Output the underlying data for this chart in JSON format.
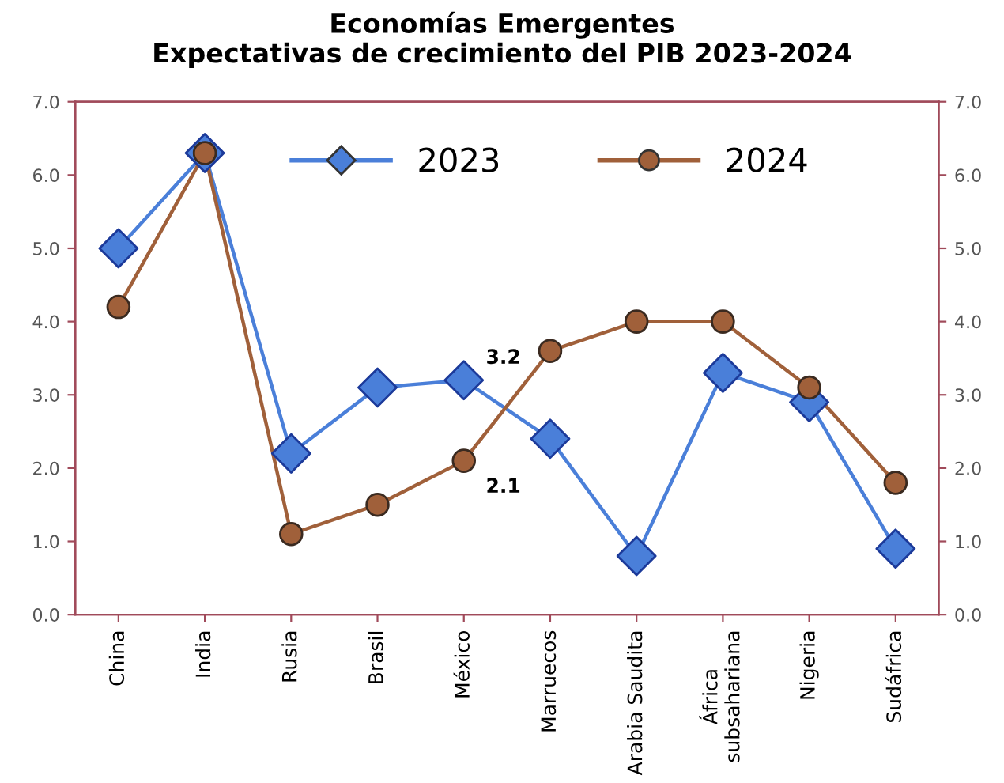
{
  "chart_data": {
    "type": "line",
    "title": "Economías Emergentes\nExpectativas de crecimiento del PIB 2023-2024",
    "categories": [
      "China",
      "India",
      "Rusia",
      "Brasil",
      "México",
      "Marruecos",
      "Arabia Saudita",
      "África\nsubsahariana",
      "Nigeria",
      "Sudáfrica"
    ],
    "series": [
      {
        "name": "2023",
        "color": "#4a7fd9",
        "marker": "diamond",
        "values": [
          5.0,
          6.3,
          2.2,
          3.1,
          3.2,
          2.4,
          0.8,
          3.3,
          2.9,
          0.9
        ],
        "value_labels": [
          null,
          null,
          null,
          null,
          "3.2",
          null,
          null,
          null,
          null,
          null
        ]
      },
      {
        "name": "2024",
        "color": "#a0603a",
        "marker": "circle",
        "values": [
          4.2,
          6.3,
          1.1,
          1.5,
          2.1,
          3.6,
          4.0,
          4.0,
          3.1,
          1.8
        ],
        "value_labels": [
          null,
          null,
          null,
          null,
          "2.1",
          null,
          null,
          null,
          null,
          null
        ]
      }
    ],
    "ylim": [
      0,
      7
    ],
    "yticks": [
      {
        "value": 0,
        "label": "0.0"
      },
      {
        "value": 1,
        "label": "1.0"
      },
      {
        "value": 2,
        "label": "2.0"
      },
      {
        "value": 3,
        "label": "3.0"
      },
      {
        "value": 4,
        "label": "4.0"
      },
      {
        "value": 5,
        "label": "5.0"
      },
      {
        "value": 6,
        "label": "6.0"
      },
      {
        "value": 7,
        "label": "7.0"
      }
    ],
    "y2lim": [
      0,
      7
    ],
    "y2ticks": [
      {
        "value": 0,
        "label": "0.0"
      },
      {
        "value": 1,
        "label": "1.0"
      },
      {
        "value": 2,
        "label": "2.0"
      },
      {
        "value": 3,
        "label": "3.0"
      },
      {
        "value": 4,
        "label": "4.0"
      },
      {
        "value": 5,
        "label": "5.0"
      },
      {
        "value": 6,
        "label": "6.0"
      },
      {
        "value": 7,
        "label": "7.0"
      }
    ],
    "legend": "top",
    "grid": false,
    "line_style": "solid"
  }
}
